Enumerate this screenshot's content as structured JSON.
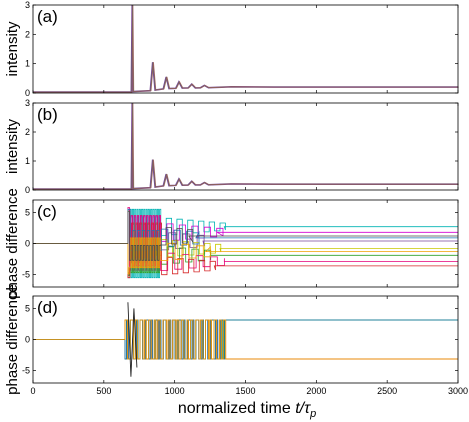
{
  "chart_data": [
    {
      "panel": "a",
      "type": "line",
      "panel_label": "(a)",
      "ylabel": "intensity",
      "xlim": [
        0,
        3000
      ],
      "ylim": [
        0,
        3
      ],
      "yticks": [
        0,
        1,
        2,
        3
      ],
      "peaks": [
        {
          "x": 700,
          "y": 3.0
        },
        {
          "x": 845,
          "y": 1.05
        },
        {
          "x": 940,
          "y": 0.55
        },
        {
          "x": 1030,
          "y": 0.38
        },
        {
          "x": 1120,
          "y": 0.3
        },
        {
          "x": 1210,
          "y": 0.26
        }
      ],
      "baseline_before": 0.03,
      "steady_state": 0.2,
      "series_colors": [
        "#7a4a9a",
        "#5a7a4a",
        "#a05a5a"
      ]
    },
    {
      "panel": "b",
      "type": "line",
      "panel_label": "(b)",
      "ylabel": "intensity",
      "xlim": [
        0,
        3000
      ],
      "ylim": [
        0,
        3
      ],
      "yticks": [
        0,
        1,
        2,
        3
      ],
      "peaks": [
        {
          "x": 700,
          "y": 3.0
        },
        {
          "x": 845,
          "y": 1.05
        },
        {
          "x": 940,
          "y": 0.55
        },
        {
          "x": 1030,
          "y": 0.38
        },
        {
          "x": 1120,
          "y": 0.3
        },
        {
          "x": 1210,
          "y": 0.26
        }
      ],
      "baseline_before": 0.03,
      "steady_state": 0.2,
      "series_colors": [
        "#7a4a9a",
        "#5a7a4a",
        "#a05a5a"
      ]
    },
    {
      "panel": "c",
      "type": "line",
      "panel_label": "(c)",
      "ylabel": "phase difference",
      "xlim": [
        0,
        3000
      ],
      "ylim": [
        -7,
        7
      ],
      "yticks": [
        -5,
        0,
        5
      ],
      "transition_start": 670,
      "series": [
        {
          "color": "#00b3b3",
          "final": 2.7,
          "settle": 1350
        },
        {
          "color": "#d200d2",
          "final": 1.8,
          "settle": 1300
        },
        {
          "color": "#7a4a9a",
          "final": 0.4,
          "settle": 1200
        },
        {
          "color": "#c8c800",
          "final": -0.8,
          "settle": 1320
        },
        {
          "color": "#2ca02c",
          "final": -1.9,
          "settle": 1250
        },
        {
          "color": "#e6007a",
          "final": -2.9,
          "settle": 1350
        },
        {
          "color": "#d62728",
          "final": -3.6,
          "settle": 1280
        },
        {
          "color": "#1f77b4",
          "final": 0.9,
          "settle": 1150
        },
        {
          "color": "#f0a000",
          "final": -1.3,
          "settle": 1220
        },
        {
          "color": "#4a4a4a",
          "final": 1.2,
          "settle": 1100
        }
      ]
    },
    {
      "panel": "d",
      "type": "line",
      "panel_label": "(d)",
      "ylabel": "phase difference",
      "xlim": [
        0,
        3000
      ],
      "ylim": [
        -7,
        7
      ],
      "yticks": [
        -5,
        0,
        5
      ],
      "xticks": [
        0,
        500,
        1000,
        1500,
        2000,
        2500,
        3000
      ],
      "xlabel": "normalized time t/τ_p",
      "transition_start": 650,
      "switch_end": 1360,
      "upper_level": 3.14,
      "lower_level": -3.14,
      "series": [
        {
          "color": "#444444",
          "final": 3.14
        },
        {
          "color": "#00b3b3",
          "final": 3.14
        },
        {
          "color": "#d200d2",
          "final": -3.14
        },
        {
          "color": "#c8c800",
          "final": -3.14
        },
        {
          "color": "#2ca02c",
          "final": 3.14
        },
        {
          "color": "#d62728",
          "final": -3.14
        },
        {
          "color": "#1f77b4",
          "final": 3.14
        },
        {
          "color": "#f0a000",
          "final": -3.14
        }
      ]
    }
  ],
  "figure": {
    "xlabel_main": "normalized time ",
    "xlabel_var": "t/τ",
    "xlabel_sub": "p"
  }
}
